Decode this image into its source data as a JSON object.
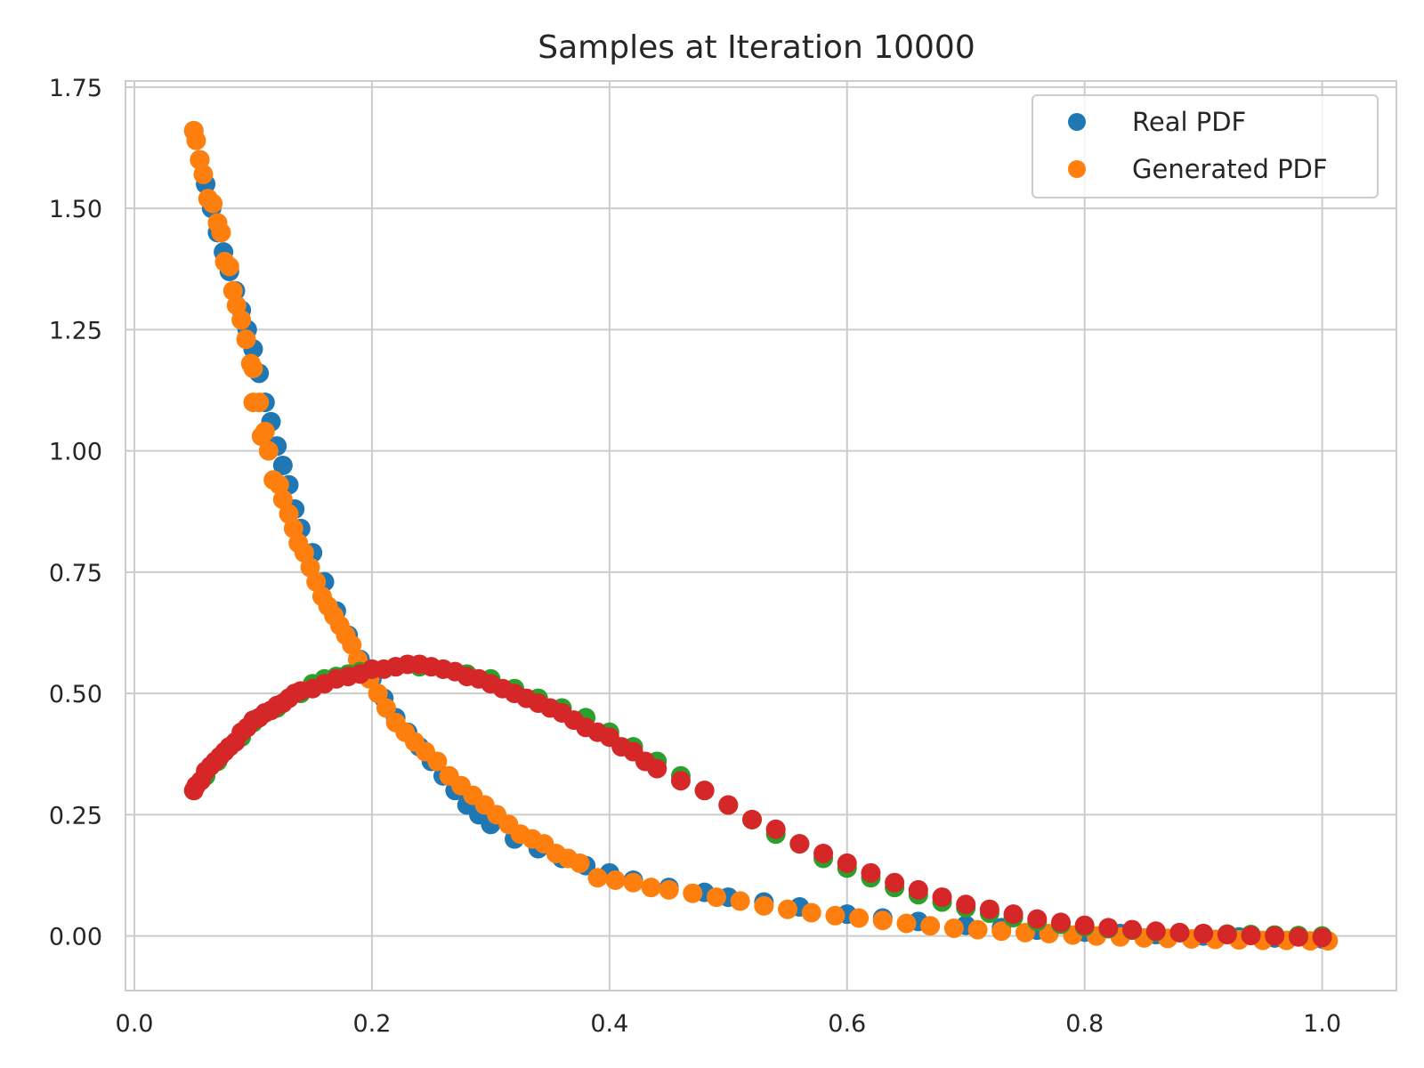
{
  "chart_data": {
    "type": "scatter",
    "title": "Samples at Iteration 10000",
    "xlabel": "",
    "ylabel": "",
    "xlim": [
      -0.0075,
      1.0625
    ],
    "ylim": [
      -0.1125,
      1.7625
    ],
    "xticks": [
      0.0,
      0.2,
      0.4,
      0.6,
      0.8,
      1.0
    ],
    "xtick_labels": [
      "0.0",
      "0.2",
      "0.4",
      "0.6",
      "0.8",
      "1.0"
    ],
    "yticks": [
      0.0,
      0.25,
      0.5,
      0.75,
      1.0,
      1.25,
      1.5,
      1.75
    ],
    "ytick_labels": [
      "0.00",
      "0.25",
      "0.50",
      "0.75",
      "1.00",
      "1.25",
      "1.50",
      "1.75"
    ],
    "grid": true,
    "legend_placement": "top-right",
    "legend": [
      {
        "label": "Real PDF",
        "color": "#1f77b4"
      },
      {
        "label": "Generated PDF",
        "color": "#ff7f0e"
      }
    ],
    "series": [
      {
        "color": "#1f77b4",
        "points": [
          [
            0.05,
            1.66
          ],
          [
            0.055,
            1.6
          ],
          [
            0.06,
            1.55
          ],
          [
            0.065,
            1.5
          ],
          [
            0.07,
            1.45
          ],
          [
            0.075,
            1.41
          ],
          [
            0.08,
            1.37
          ],
          [
            0.085,
            1.33
          ],
          [
            0.09,
            1.29
          ],
          [
            0.095,
            1.25
          ],
          [
            0.1,
            1.21
          ],
          [
            0.105,
            1.16
          ],
          [
            0.11,
            1.1
          ],
          [
            0.115,
            1.06
          ],
          [
            0.12,
            1.01
          ],
          [
            0.125,
            0.97
          ],
          [
            0.13,
            0.93
          ],
          [
            0.135,
            0.88
          ],
          [
            0.14,
            0.84
          ],
          [
            0.15,
            0.79
          ],
          [
            0.16,
            0.73
          ],
          [
            0.17,
            0.67
          ],
          [
            0.18,
            0.62
          ],
          [
            0.19,
            0.57
          ],
          [
            0.2,
            0.53
          ],
          [
            0.21,
            0.49
          ],
          [
            0.22,
            0.45
          ],
          [
            0.23,
            0.42
          ],
          [
            0.24,
            0.39
          ],
          [
            0.25,
            0.36
          ],
          [
            0.26,
            0.33
          ],
          [
            0.27,
            0.3
          ],
          [
            0.28,
            0.27
          ],
          [
            0.29,
            0.25
          ],
          [
            0.3,
            0.23
          ],
          [
            0.32,
            0.2
          ],
          [
            0.34,
            0.18
          ],
          [
            0.36,
            0.16
          ],
          [
            0.38,
            0.145
          ],
          [
            0.4,
            0.13
          ],
          [
            0.42,
            0.115
          ],
          [
            0.45,
            0.1
          ],
          [
            0.48,
            0.09
          ],
          [
            0.5,
            0.08
          ],
          [
            0.53,
            0.07
          ],
          [
            0.56,
            0.06
          ],
          [
            0.6,
            0.045
          ],
          [
            0.63,
            0.037
          ],
          [
            0.66,
            0.03
          ],
          [
            0.7,
            0.022
          ],
          [
            0.73,
            0.017
          ],
          [
            0.76,
            0.012
          ],
          [
            0.8,
            0.008
          ],
          [
            0.83,
            0.005
          ],
          [
            0.86,
            0.003
          ],
          [
            0.9,
            0.0
          ],
          [
            0.93,
            -0.002
          ],
          [
            0.96,
            -0.004
          ],
          [
            1.0,
            -0.006
          ]
        ]
      },
      {
        "color": "#ff7f0e",
        "points": [
          [
            0.05,
            1.66
          ],
          [
            0.052,
            1.64
          ],
          [
            0.055,
            1.6
          ],
          [
            0.058,
            1.57
          ],
          [
            0.062,
            1.52
          ],
          [
            0.066,
            1.51
          ],
          [
            0.07,
            1.47
          ],
          [
            0.073,
            1.45
          ],
          [
            0.076,
            1.39
          ],
          [
            0.08,
            1.38
          ],
          [
            0.083,
            1.33
          ],
          [
            0.086,
            1.3
          ],
          [
            0.09,
            1.27
          ],
          [
            0.094,
            1.23
          ],
          [
            0.098,
            1.18
          ],
          [
            0.1,
            1.17
          ],
          [
            0.1,
            1.1
          ],
          [
            0.105,
            1.1
          ],
          [
            0.107,
            1.03
          ],
          [
            0.11,
            1.04
          ],
          [
            0.113,
            1.0
          ],
          [
            0.117,
            0.94
          ],
          [
            0.122,
            0.93
          ],
          [
            0.125,
            0.9
          ],
          [
            0.13,
            0.87
          ],
          [
            0.134,
            0.84
          ],
          [
            0.138,
            0.81
          ],
          [
            0.143,
            0.79
          ],
          [
            0.148,
            0.76
          ],
          [
            0.153,
            0.73
          ],
          [
            0.158,
            0.7
          ],
          [
            0.163,
            0.68
          ],
          [
            0.168,
            0.66
          ],
          [
            0.173,
            0.64
          ],
          [
            0.178,
            0.62
          ],
          [
            0.183,
            0.6
          ],
          [
            0.188,
            0.57
          ],
          [
            0.193,
            0.55
          ],
          [
            0.198,
            0.53
          ],
          [
            0.205,
            0.5
          ],
          [
            0.212,
            0.47
          ],
          [
            0.22,
            0.44
          ],
          [
            0.228,
            0.42
          ],
          [
            0.236,
            0.4
          ],
          [
            0.245,
            0.38
          ],
          [
            0.255,
            0.36
          ],
          [
            0.265,
            0.33
          ],
          [
            0.275,
            0.31
          ],
          [
            0.285,
            0.29
          ],
          [
            0.295,
            0.27
          ],
          [
            0.305,
            0.25
          ],
          [
            0.315,
            0.23
          ],
          [
            0.325,
            0.21
          ],
          [
            0.335,
            0.2
          ],
          [
            0.345,
            0.19
          ],
          [
            0.355,
            0.17
          ],
          [
            0.365,
            0.16
          ],
          [
            0.375,
            0.15
          ],
          [
            0.39,
            0.12
          ],
          [
            0.405,
            0.115
          ],
          [
            0.42,
            0.11
          ],
          [
            0.435,
            0.1
          ],
          [
            0.45,
            0.095
          ],
          [
            0.47,
            0.088
          ],
          [
            0.49,
            0.08
          ],
          [
            0.51,
            0.072
          ],
          [
            0.53,
            0.062
          ],
          [
            0.55,
            0.055
          ],
          [
            0.57,
            0.048
          ],
          [
            0.59,
            0.042
          ],
          [
            0.61,
            0.037
          ],
          [
            0.63,
            0.032
          ],
          [
            0.65,
            0.026
          ],
          [
            0.67,
            0.021
          ],
          [
            0.69,
            0.016
          ],
          [
            0.71,
            0.013
          ],
          [
            0.73,
            0.01
          ],
          [
            0.75,
            0.007
          ],
          [
            0.77,
            0.005
          ],
          [
            0.79,
            0.002
          ],
          [
            0.81,
            0.0
          ],
          [
            0.83,
            -0.002
          ],
          [
            0.85,
            -0.004
          ],
          [
            0.87,
            -0.005
          ],
          [
            0.89,
            -0.006
          ],
          [
            0.91,
            -0.007
          ],
          [
            0.93,
            -0.008
          ],
          [
            0.95,
            -0.009
          ],
          [
            0.97,
            -0.009
          ],
          [
            0.99,
            -0.01
          ],
          [
            1.005,
            -0.01
          ]
        ]
      },
      {
        "color": "#2ca02c",
        "points": [
          [
            0.05,
            0.3
          ],
          [
            0.06,
            0.33
          ],
          [
            0.07,
            0.36
          ],
          [
            0.08,
            0.39
          ],
          [
            0.09,
            0.41
          ],
          [
            0.1,
            0.44
          ],
          [
            0.11,
            0.46
          ],
          [
            0.12,
            0.47
          ],
          [
            0.13,
            0.49
          ],
          [
            0.14,
            0.5
          ],
          [
            0.15,
            0.52
          ],
          [
            0.16,
            0.53
          ],
          [
            0.17,
            0.535
          ],
          [
            0.18,
            0.54
          ],
          [
            0.19,
            0.545
          ],
          [
            0.2,
            0.55
          ],
          [
            0.22,
            0.555
          ],
          [
            0.24,
            0.555
          ],
          [
            0.26,
            0.55
          ],
          [
            0.28,
            0.54
          ],
          [
            0.3,
            0.53
          ],
          [
            0.32,
            0.51
          ],
          [
            0.34,
            0.49
          ],
          [
            0.36,
            0.47
          ],
          [
            0.38,
            0.45
          ],
          [
            0.4,
            0.42
          ],
          [
            0.42,
            0.39
          ],
          [
            0.44,
            0.36
          ],
          [
            0.46,
            0.33
          ],
          [
            0.48,
            0.3
          ],
          [
            0.5,
            0.27
          ],
          [
            0.52,
            0.24
          ],
          [
            0.54,
            0.21
          ],
          [
            0.56,
            0.19
          ],
          [
            0.58,
            0.16
          ],
          [
            0.6,
            0.14
          ],
          [
            0.62,
            0.12
          ],
          [
            0.64,
            0.1
          ],
          [
            0.66,
            0.085
          ],
          [
            0.68,
            0.07
          ],
          [
            0.7,
            0.058
          ],
          [
            0.72,
            0.047
          ],
          [
            0.74,
            0.038
          ],
          [
            0.76,
            0.03
          ],
          [
            0.78,
            0.024
          ],
          [
            0.8,
            0.019
          ],
          [
            0.82,
            0.015
          ],
          [
            0.84,
            0.012
          ],
          [
            0.86,
            0.009
          ],
          [
            0.88,
            0.007
          ],
          [
            0.9,
            0.005
          ],
          [
            0.92,
            0.004
          ],
          [
            0.94,
            0.003
          ],
          [
            0.96,
            0.002
          ],
          [
            0.98,
            0.001
          ],
          [
            1.0,
            0.0
          ]
        ]
      },
      {
        "color": "#d62728",
        "points": [
          [
            0.05,
            0.3
          ],
          [
            0.052,
            0.31
          ],
          [
            0.056,
            0.32
          ],
          [
            0.06,
            0.34
          ],
          [
            0.064,
            0.35
          ],
          [
            0.068,
            0.36
          ],
          [
            0.072,
            0.37
          ],
          [
            0.076,
            0.38
          ],
          [
            0.08,
            0.39
          ],
          [
            0.085,
            0.4
          ],
          [
            0.09,
            0.42
          ],
          [
            0.095,
            0.43
          ],
          [
            0.1,
            0.445
          ],
          [
            0.105,
            0.45
          ],
          [
            0.11,
            0.46
          ],
          [
            0.115,
            0.465
          ],
          [
            0.12,
            0.475
          ],
          [
            0.125,
            0.48
          ],
          [
            0.13,
            0.49
          ],
          [
            0.135,
            0.5
          ],
          [
            0.14,
            0.505
          ],
          [
            0.15,
            0.51
          ],
          [
            0.16,
            0.52
          ],
          [
            0.17,
            0.53
          ],
          [
            0.18,
            0.535
          ],
          [
            0.19,
            0.54
          ],
          [
            0.2,
            0.55
          ],
          [
            0.21,
            0.55
          ],
          [
            0.22,
            0.555
          ],
          [
            0.23,
            0.56
          ],
          [
            0.24,
            0.56
          ],
          [
            0.25,
            0.555
          ],
          [
            0.26,
            0.55
          ],
          [
            0.27,
            0.545
          ],
          [
            0.28,
            0.535
          ],
          [
            0.29,
            0.53
          ],
          [
            0.3,
            0.52
          ],
          [
            0.31,
            0.51
          ],
          [
            0.32,
            0.5
          ],
          [
            0.33,
            0.49
          ],
          [
            0.34,
            0.48
          ],
          [
            0.35,
            0.47
          ],
          [
            0.36,
            0.46
          ],
          [
            0.37,
            0.445
          ],
          [
            0.38,
            0.43
          ],
          [
            0.39,
            0.42
          ],
          [
            0.4,
            0.41
          ],
          [
            0.41,
            0.39
          ],
          [
            0.42,
            0.38
          ],
          [
            0.43,
            0.36
          ],
          [
            0.44,
            0.345
          ],
          [
            0.46,
            0.32
          ],
          [
            0.48,
            0.3
          ],
          [
            0.5,
            0.27
          ],
          [
            0.52,
            0.24
          ],
          [
            0.54,
            0.22
          ],
          [
            0.56,
            0.19
          ],
          [
            0.58,
            0.17
          ],
          [
            0.6,
            0.15
          ],
          [
            0.62,
            0.13
          ],
          [
            0.64,
            0.11
          ],
          [
            0.66,
            0.095
          ],
          [
            0.68,
            0.08
          ],
          [
            0.7,
            0.065
          ],
          [
            0.72,
            0.055
          ],
          [
            0.74,
            0.045
          ],
          [
            0.76,
            0.035
          ],
          [
            0.78,
            0.028
          ],
          [
            0.8,
            0.022
          ],
          [
            0.82,
            0.017
          ],
          [
            0.84,
            0.013
          ],
          [
            0.86,
            0.01
          ],
          [
            0.88,
            0.007
          ],
          [
            0.9,
            0.005
          ],
          [
            0.92,
            0.003
          ],
          [
            0.94,
            0.001
          ],
          [
            0.96,
            0.0
          ],
          [
            0.98,
            -0.002
          ],
          [
            1.0,
            -0.003
          ]
        ]
      }
    ]
  }
}
